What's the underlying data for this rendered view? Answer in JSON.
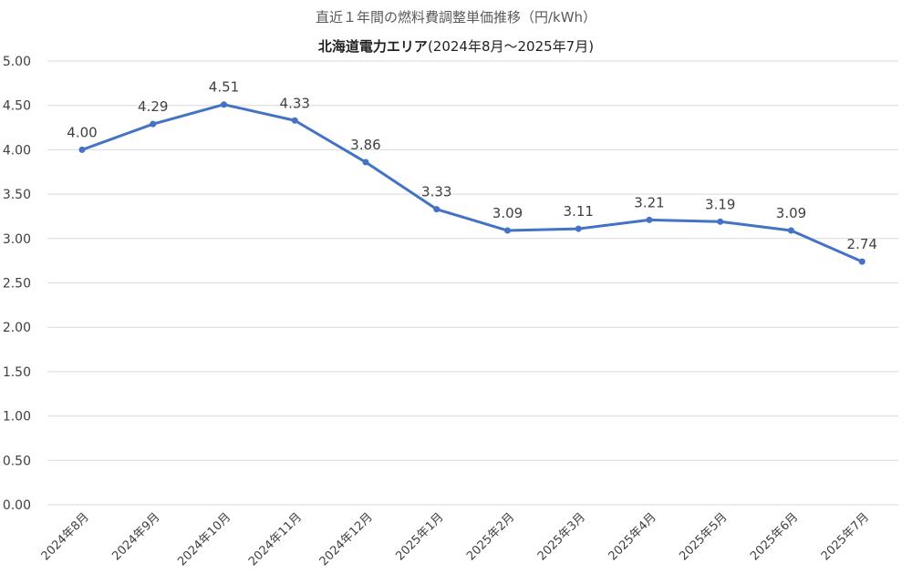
{
  "chart_data": {
    "type": "line",
    "title": "直近１年間の燃料費調整単価推移（円/kWh）",
    "subtitle_bold": "北海道電力エリア",
    "subtitle_rest": "(2024年8月～2025年7月)",
    "categories": [
      "2024年8月",
      "2024年9月",
      "2024年10月",
      "2024年11月",
      "2024年12月",
      "2025年1月",
      "2025年2月",
      "2025年3月",
      "2025年4月",
      "2025年5月",
      "2025年6月",
      "2025年7月"
    ],
    "series": [
      {
        "values": [
          4.0,
          4.29,
          4.51,
          4.33,
          3.86,
          3.33,
          3.09,
          3.11,
          3.21,
          3.19,
          3.09,
          2.74
        ],
        "labels": [
          "4.00",
          "4.29",
          "4.51",
          "4.33",
          "3.86",
          "3.33",
          "3.09",
          "3.11",
          "3.21",
          "3.19",
          "3.09",
          "2.74"
        ],
        "color": "#4472C4"
      }
    ],
    "ylim": [
      0,
      5
    ],
    "yticks": [
      "0.00",
      "0.50",
      "1.00",
      "1.50",
      "2.00",
      "2.50",
      "3.00",
      "3.50",
      "4.00",
      "4.50",
      "5.00"
    ],
    "grid": true,
    "legend": "none",
    "colors": {
      "grid": "#D9D9D9",
      "axis_text": "#404040",
      "line": "#4472C4"
    }
  }
}
